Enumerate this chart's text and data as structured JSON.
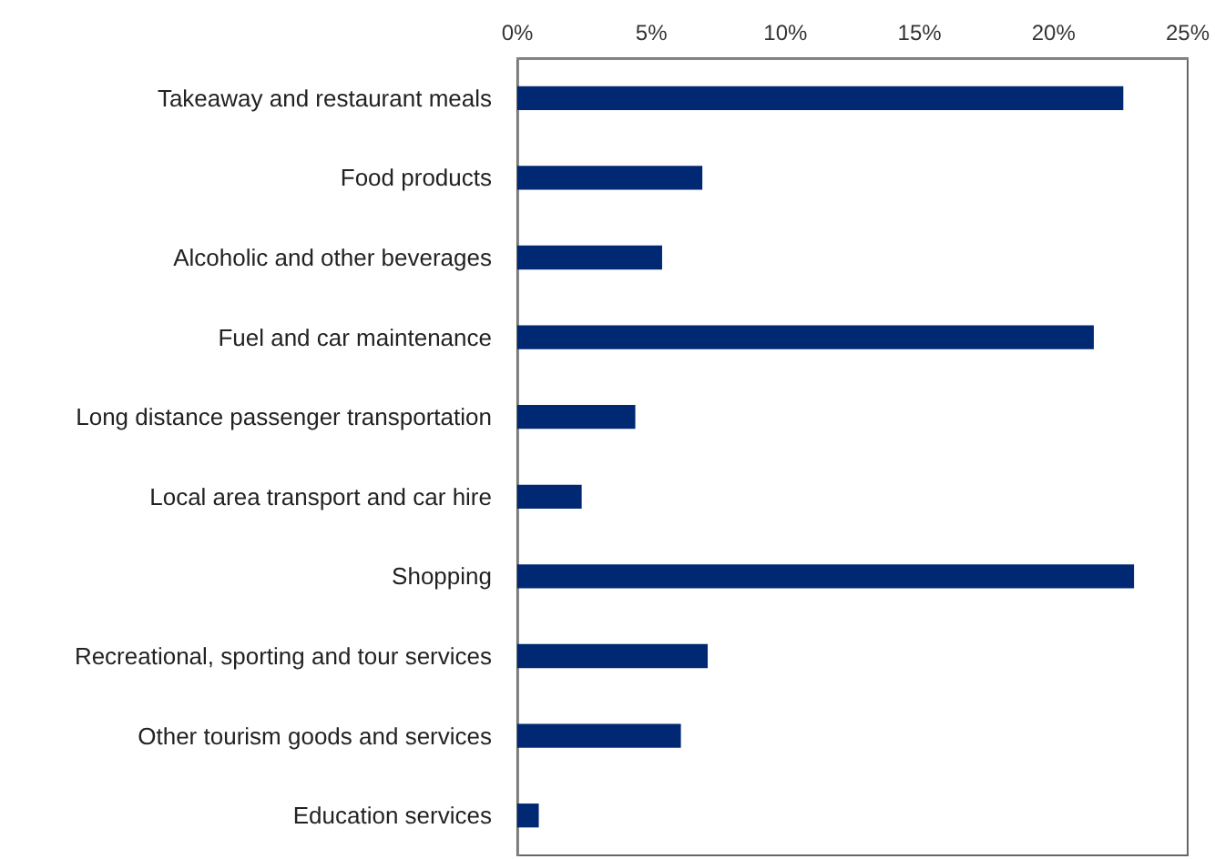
{
  "chart_data": {
    "type": "bar",
    "orientation": "horizontal",
    "categories": [
      "Takeaway and restaurant meals",
      "Food products",
      "Alcoholic and other beverages",
      "Fuel and car maintenance",
      "Long distance passenger transportation",
      "Local area transport and car hire",
      "Shopping",
      "Recreational, sporting and tour services",
      "Other tourism goods and services",
      "Education services"
    ],
    "values": [
      22.6,
      6.9,
      5.4,
      21.5,
      4.4,
      2.4,
      23.0,
      7.1,
      6.1,
      0.8
    ],
    "color": "#002873",
    "xlim": [
      0,
      25
    ],
    "xticks": [
      {
        "value": 0,
        "label": "0%"
      },
      {
        "value": 5,
        "label": "5%"
      },
      {
        "value": 10,
        "label": "10%"
      },
      {
        "value": 15,
        "label": "15%"
      },
      {
        "value": 20,
        "label": "20%"
      },
      {
        "value": 25,
        "label": "25%"
      }
    ],
    "data_labels": false
  }
}
